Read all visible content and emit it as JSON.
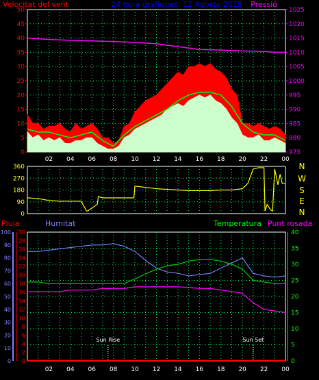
{
  "chart_data": [
    {
      "type": "line",
      "title": "24 hora grafiques: 12 Agosto 2018",
      "left_label": "Velocitat del vent",
      "right_label": "Pressió",
      "x_ticks": [
        "02",
        "04",
        "06",
        "08",
        "10",
        "12",
        "14",
        "16",
        "18",
        "20",
        "22",
        "00"
      ],
      "x_range": [
        0,
        24
      ],
      "y_left_ticks": [
        0,
        5,
        10,
        15,
        20,
        25,
        30,
        35,
        40,
        45,
        50
      ],
      "y_left_range": [
        0,
        50
      ],
      "y_right_ticks": [
        975,
        980,
        985,
        990,
        995,
        1000,
        1005,
        1010,
        1015,
        1020,
        1025
      ],
      "y_right_range": [
        975,
        1025
      ],
      "grid": true,
      "colors": {
        "gust": "#ff0000",
        "avg": "#00ff00",
        "wind": "#ccffcc",
        "pressure": "#ff00ff",
        "left_axis": "#ff0000",
        "right_axis": "#ff00ff",
        "title": "#0000ff"
      },
      "series": [
        {
          "key": "gust",
          "x": [
            0,
            0.5,
            1,
            1.5,
            2,
            2.5,
            3,
            3.5,
            4,
            4.5,
            5,
            5.5,
            6,
            6.5,
            7,
            7.5,
            8,
            8.5,
            9,
            9.5,
            10,
            10.5,
            11,
            11.5,
            12,
            12.5,
            13,
            13.5,
            14,
            14.5,
            15,
            15.5,
            16,
            16.5,
            17,
            17.5,
            18,
            18.5,
            19,
            19.5,
            20,
            20.5,
            21,
            21.5,
            22,
            22.5,
            23,
            23.5,
            24
          ],
          "values": [
            13,
            10,
            10,
            8,
            9,
            9,
            10,
            8,
            7,
            10,
            8,
            9,
            10,
            8,
            5,
            5,
            3,
            4,
            9,
            10,
            14,
            16,
            18,
            19,
            20,
            22,
            24,
            26,
            28,
            27,
            30,
            30,
            31,
            30,
            31,
            29,
            28,
            26,
            22,
            20,
            10,
            10,
            9,
            10,
            9,
            8,
            9,
            8,
            6
          ]
        },
        {
          "key": "avg",
          "x": [
            0,
            1,
            2,
            3,
            4,
            5,
            6,
            7,
            8,
            9,
            10,
            11,
            12,
            13,
            14,
            15,
            16,
            17,
            18,
            19,
            20,
            21,
            22,
            23,
            24
          ],
          "values": [
            8,
            7,
            7,
            6,
            5,
            6,
            7,
            4,
            2,
            6,
            9,
            11,
            13,
            15,
            18,
            20,
            21,
            21,
            20,
            16,
            10,
            7,
            6,
            6,
            4
          ]
        },
        {
          "key": "wind",
          "x": [
            0,
            0.5,
            1,
            1.5,
            2,
            2.5,
            3,
            3.5,
            4,
            4.5,
            5,
            5.5,
            6,
            6.5,
            7,
            7.5,
            8,
            8.5,
            9,
            9.5,
            10,
            10.5,
            11,
            11.5,
            12,
            12.5,
            13,
            13.5,
            14,
            14.5,
            15,
            15.5,
            16,
            16.5,
            17,
            17.5,
            18,
            18.5,
            19,
            19.5,
            20,
            20.5,
            21,
            21.5,
            22,
            22.5,
            23,
            23.5,
            24
          ],
          "values": [
            7,
            5,
            6,
            4,
            5,
            4,
            5,
            3,
            3,
            4,
            4,
            5,
            5,
            3,
            2,
            1,
            1,
            2,
            5,
            6,
            8,
            9,
            10,
            11,
            12,
            13,
            15,
            16,
            17,
            16,
            18,
            19,
            20,
            19,
            20,
            18,
            17,
            15,
            12,
            10,
            6,
            5,
            5,
            6,
            4,
            4,
            5,
            4,
            3
          ]
        },
        {
          "key": "pressure",
          "x": [
            0,
            2,
            4,
            6,
            8,
            10,
            12,
            14,
            16,
            18,
            20,
            22,
            23,
            24
          ],
          "values": [
            1015,
            1014.5,
            1014.2,
            1014,
            1013.8,
            1013.5,
            1013,
            1012,
            1011,
            1010.8,
            1010.5,
            1010.3,
            1010,
            1010
          ]
        }
      ]
    },
    {
      "type": "line",
      "x_range": [
        0,
        24
      ],
      "y_range": [
        0,
        360
      ],
      "y_ticks": [
        0,
        90,
        180,
        270,
        360
      ],
      "direction_labels": [
        "N",
        "W",
        "S",
        "E",
        "N"
      ],
      "grid": true,
      "colors": {
        "line": "#ffff00",
        "axis": "#ffff00",
        "dir": "#ffff00"
      },
      "series": [
        {
          "key": "direction",
          "x": [
            0,
            0.1,
            1,
            2,
            3,
            4,
            5,
            5.5,
            5.6,
            6.5,
            6.6,
            7,
            8,
            9,
            9.9,
            10,
            11,
            12,
            13,
            14,
            15,
            16,
            17,
            18,
            19,
            20,
            20.5,
            21,
            21.5,
            22,
            22.1,
            22.3,
            22.6,
            22.8,
            23,
            23.3,
            23.5,
            23.7,
            24
          ],
          "values": [
            120,
            120,
            115,
            100,
            95,
            95,
            95,
            20,
            20,
            70,
            130,
            120,
            120,
            120,
            120,
            210,
            200,
            190,
            185,
            180,
            175,
            175,
            175,
            180,
            180,
            190,
            230,
            340,
            350,
            350,
            20,
            70,
            30,
            20,
            340,
            220,
            300,
            230,
            230
          ]
        }
      ]
    },
    {
      "type": "line",
      "left_label": "Pluja",
      "left2_label": "Humitat",
      "right_label": "Temperatura",
      "right2_label": "Punt rosada",
      "x_ticks": [
        "02",
        "04",
        "06",
        "08",
        "10",
        "12",
        "14",
        "16",
        "18",
        "20",
        "22",
        "00"
      ],
      "x_range": [
        0,
        24
      ],
      "y_rain_ticks": [
        0,
        2,
        4,
        6,
        8,
        10,
        12,
        14,
        16,
        18,
        20,
        22,
        24,
        26,
        28,
        30
      ],
      "y_rain_range": [
        0,
        30
      ],
      "y_hum_ticks": [
        0,
        10,
        20,
        30,
        40,
        50,
        60,
        70,
        80,
        90,
        100
      ],
      "y_hum_range": [
        0,
        100
      ],
      "y_temp_ticks": [
        0,
        5,
        10,
        15,
        20,
        25,
        30,
        35,
        40
      ],
      "y_temp_range": [
        0,
        40
      ],
      "grid": true,
      "annotations": [
        "Sun Rise",
        "Sun Set"
      ],
      "annotation_x": [
        7.5,
        21
      ],
      "colors": {
        "rain": "#ff0000",
        "humidity": "#8080ff",
        "temperature": "#00cc00",
        "dewpoint": "#ff00ff",
        "annotation": "#ffffff",
        "rain_axis": "#ff0000",
        "hum_axis": "#8080ff",
        "temp_axis": "#00ff00",
        "dew_label": "#ff00ff"
      },
      "series": [
        {
          "key": "humidity",
          "x": [
            0,
            1,
            2,
            3,
            4,
            5,
            6,
            7,
            8,
            9,
            10,
            11,
            12,
            13,
            14,
            15,
            16,
            17,
            18,
            19,
            20,
            21,
            22,
            23,
            24
          ],
          "values": [
            85,
            85,
            86,
            87,
            88,
            89,
            90,
            90,
            91,
            89,
            85,
            78,
            72,
            69,
            68,
            66,
            67,
            68,
            72,
            76,
            80,
            68,
            66,
            65,
            66
          ]
        },
        {
          "key": "temperature",
          "x": [
            0,
            1,
            2,
            3,
            4,
            5,
            6,
            7,
            8,
            9,
            10,
            11,
            12,
            13,
            14,
            15,
            16,
            17,
            18,
            19,
            20,
            21,
            22,
            23,
            24
          ],
          "values": [
            24.5,
            24.5,
            24,
            24,
            24,
            24,
            24,
            24,
            24,
            24,
            25.5,
            27,
            28.5,
            29.5,
            30,
            31,
            31.5,
            31.5,
            31,
            30,
            28.5,
            25,
            24.5,
            24,
            24
          ]
        },
        {
          "key": "dewpoint",
          "x": [
            0,
            1,
            2,
            3,
            4,
            5,
            6,
            7,
            8,
            9,
            10,
            11,
            12,
            13,
            14,
            15,
            16,
            17,
            18,
            19,
            20,
            21,
            22,
            23,
            24
          ],
          "values": [
            21.5,
            21.5,
            21.5,
            21.5,
            22,
            22,
            22,
            22.5,
            22.5,
            22.5,
            23,
            23,
            23,
            23,
            23,
            22.8,
            22.5,
            22.5,
            22,
            21.5,
            21,
            18,
            16,
            15.5,
            15
          ]
        },
        {
          "key": "rain",
          "x": [
            0,
            24
          ],
          "values": [
            0,
            0
          ]
        }
      ]
    }
  ]
}
